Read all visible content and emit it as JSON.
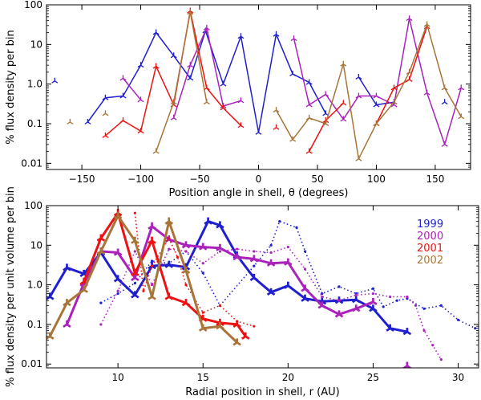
{
  "chart_data": [
    {
      "type": "line",
      "xlabel": "Position angle in shell, θ (degrees)",
      "ylabel": "% flux density per bin",
      "xlim": [
        -180,
        180
      ],
      "ylim": [
        0.007,
        100
      ],
      "yscale": "log",
      "xticks": [
        -150,
        -100,
        -50,
        0,
        50,
        100,
        150
      ],
      "xtick_labels": [
        "−150",
        "−100",
        "−50",
        "0",
        "50",
        "100",
        "150"
      ],
      "yticks": [
        0.01,
        0.1,
        1,
        10,
        100
      ],
      "ytick_labels": [
        "0.01",
        "0.1",
        "1.0",
        "10",
        "100"
      ],
      "series": [
        {
          "color": "#1f1fd0",
          "points": [
            [
              -173,
              1.2
            ],
            null,
            [
              -145,
              0.11
            ],
            [
              -130,
              0.45
            ],
            [
              -115,
              0.5
            ],
            [
              -100,
              3.0
            ],
            [
              -87,
              20
            ],
            [
              -72,
              5.2
            ],
            [
              -58,
              1.4
            ],
            [
              -45,
              22
            ],
            [
              -30,
              1.0
            ],
            [
              -15,
              16
            ],
            [
              0,
              0.06
            ],
            [
              15,
              18
            ],
            [
              29,
              1.8
            ],
            [
              43,
              1.1
            ],
            [
              57,
              0.18
            ],
            null,
            [
              85,
              1.5
            ],
            [
              100,
              0.3
            ],
            [
              115,
              0.35
            ],
            null,
            [
              158,
              0.35
            ]
          ]
        },
        {
          "color": "#aa22bb",
          "points": [
            [
              -115,
              1.4
            ],
            [
              -100,
              0.4
            ],
            null,
            [
              -72,
              0.14
            ],
            [
              -58,
              3.0
            ],
            [
              -44,
              26
            ],
            [
              -30,
              0.28
            ],
            [
              -15,
              0.38
            ],
            null,
            [
              30,
              14
            ],
            [
              43,
              0.3
            ],
            [
              57,
              0.55
            ],
            [
              72,
              0.13
            ],
            [
              85,
              0.5
            ],
            [
              100,
              0.5
            ],
            [
              115,
              0.3
            ],
            [
              128,
              45
            ],
            [
              143,
              0.6
            ],
            [
              158,
              0.03
            ],
            [
              172,
              0.8
            ]
          ]
        },
        {
          "color": "#ee1111",
          "points": [
            [
              -130,
              0.05
            ],
            [
              -115,
              0.12
            ],
            [
              -100,
              0.065
            ],
            [
              -87,
              2.8
            ],
            [
              -72,
              0.3
            ],
            [
              -58,
              70
            ],
            [
              -44,
              0.8
            ],
            [
              -30,
              0.25
            ],
            [
              -15,
              0.09
            ],
            null,
            [
              15,
              0.08
            ],
            null,
            [
              43,
              0.02
            ],
            [
              57,
              0.12
            ],
            [
              72,
              0.33
            ],
            null,
            [
              100,
              0.1
            ],
            [
              115,
              0.8
            ],
            [
              128,
              1.3
            ],
            [
              143,
              28
            ]
          ]
        },
        {
          "color": "#a87438",
          "points": [
            [
              -160,
              0.11
            ],
            null,
            [
              -130,
              0.18
            ],
            null,
            [
              -87,
              0.02
            ],
            [
              -72,
              0.35
            ],
            [
              -58,
              65
            ],
            [
              -44,
              0.35
            ],
            null,
            [
              15,
              0.22
            ],
            [
              29,
              0.04
            ],
            [
              43,
              0.14
            ],
            [
              57,
              0.1
            ],
            [
              72,
              3.2
            ],
            [
              85,
              0.013
            ],
            [
              100,
              0.1
            ],
            [
              115,
              0.35
            ],
            [
              128,
              2.0
            ],
            [
              143,
              32
            ],
            [
              158,
              0.8
            ],
            [
              172,
              0.15
            ]
          ]
        }
      ]
    },
    {
      "type": "line",
      "xlabel": "Radial position in shell, r (AU)",
      "ylabel": "% flux density per unit volume per bin",
      "xlim": [
        5.8,
        31.2
      ],
      "ylim": [
        0.008,
        100
      ],
      "yscale": "log",
      "xticks": [
        10,
        15,
        20,
        25,
        30
      ],
      "xtick_labels": [
        "10",
        "15",
        "20",
        "25",
        "30"
      ],
      "yticks": [
        0.01,
        0.1,
        1,
        10,
        100
      ],
      "ytick_labels": [
        "0.01",
        "0.1",
        "1.0",
        "10",
        "100"
      ],
      "legend": {
        "position": "top-right",
        "entries": [
          {
            "label": "1999",
            "color": "#1f1fd0"
          },
          {
            "label": "2000",
            "color": "#aa22bb"
          },
          {
            "label": "2001",
            "color": "#ee1111"
          },
          {
            "label": "2002",
            "color": "#a87438"
          }
        ]
      },
      "series": [
        {
          "name": "1999",
          "color": "#1f1fd0",
          "style": "solid",
          "points": [
            [
              6.0,
              0.5
            ],
            [
              7.0,
              2.7
            ],
            [
              8.0,
              1.9
            ],
            [
              9.0,
              6.5
            ],
            [
              10.0,
              1.4
            ],
            [
              11.0,
              0.55
            ],
            [
              12.0,
              3.0
            ],
            [
              13.0,
              3.2
            ],
            [
              14.0,
              2.8
            ],
            [
              15.3,
              40
            ],
            [
              16.0,
              32
            ],
            [
              17.0,
              5.5
            ],
            [
              18.0,
              1.5
            ],
            [
              19.0,
              0.65
            ],
            [
              20.0,
              0.95
            ],
            [
              21.0,
              0.45
            ],
            [
              22.0,
              0.38
            ],
            [
              23.0,
              0.4
            ],
            [
              24.0,
              0.42
            ],
            [
              25.0,
              0.25
            ],
            [
              26.0,
              0.08
            ],
            [
              27.0,
              0.065
            ]
          ]
        },
        {
          "name": "1999",
          "color": "#1f1fd0",
          "style": "dotted",
          "points": [
            [
              9.0,
              0.35
            ],
            [
              10.0,
              0.6
            ],
            [
              11.0,
              1.1
            ],
            [
              12.0,
              4.0
            ],
            [
              13.0,
              3.5
            ],
            [
              14.0,
              7.0
            ],
            [
              15.0,
              2.0
            ],
            [
              16.0,
              0.3
            ],
            [
              18.0,
              3.0
            ],
            [
              19.0,
              10
            ],
            [
              19.5,
              40
            ],
            [
              20.5,
              28
            ],
            [
              21.0,
              7.0
            ],
            [
              22.0,
              0.6
            ],
            [
              23.0,
              0.9
            ],
            [
              24.0,
              0.6
            ],
            [
              25.0,
              0.8
            ],
            [
              25.6,
              0.28
            ],
            [
              26.4,
              0.4
            ],
            [
              27.0,
              0.45
            ],
            [
              28.0,
              0.25
            ],
            [
              29.0,
              0.3
            ],
            [
              30.0,
              0.13
            ],
            [
              31.0,
              0.08
            ]
          ]
        },
        {
          "name": "2000",
          "color": "#aa22bb",
          "style": "solid",
          "points": [
            [
              7.0,
              0.1
            ],
            [
              8.0,
              1.1
            ],
            [
              9.0,
              7.0
            ],
            [
              10.0,
              6.5
            ],
            [
              11.0,
              1.5
            ],
            [
              12.0,
              30
            ],
            [
              13.0,
              14
            ],
            [
              14.0,
              10
            ],
            [
              15.0,
              9.0
            ],
            [
              16.0,
              8.5
            ],
            [
              17.0,
              5.0
            ],
            [
              18.0,
              4.5
            ],
            [
              19.0,
              3.5
            ],
            [
              20.0,
              3.7
            ],
            [
              21.0,
              0.8
            ],
            [
              22.0,
              0.3
            ],
            [
              23.0,
              0.18
            ],
            [
              24.0,
              0.25
            ],
            [
              25.0,
              0.37
            ],
            null,
            [
              27.0,
              0.009
            ]
          ]
        },
        {
          "name": "2000",
          "color": "#aa22bb",
          "style": "dotted",
          "points": [
            [
              9.0,
              0.1
            ],
            [
              10.0,
              0.7
            ],
            [
              11.0,
              7.0
            ],
            [
              12.0,
              1.0
            ],
            [
              13.0,
              8.0
            ],
            [
              14.0,
              7.0
            ],
            [
              15.0,
              3.5
            ],
            [
              16.0,
              7.0
            ],
            [
              17.0,
              8.0
            ],
            [
              18.0,
              7.0
            ],
            [
              19.0,
              6.5
            ],
            [
              20.0,
              9.0
            ],
            [
              21.0,
              2.5
            ],
            [
              22.0,
              0.5
            ],
            [
              23.0,
              0.4
            ],
            [
              24.0,
              0.55
            ],
            [
              25.0,
              0.6
            ],
            [
              26.0,
              0.5
            ],
            [
              27.0,
              0.5
            ],
            [
              27.5,
              0.3
            ],
            [
              28.0,
              0.07
            ],
            [
              28.5,
              0.03
            ],
            [
              29.0,
              0.013
            ]
          ]
        },
        {
          "name": "2001",
          "color": "#ee1111",
          "style": "solid",
          "points": [
            [
              8.0,
              1.2
            ],
            [
              9.0,
              15
            ],
            [
              10.0,
              65
            ],
            [
              11.0,
              2.0
            ],
            [
              12.0,
              13
            ],
            [
              13.0,
              0.5
            ],
            [
              14.0,
              0.35
            ],
            [
              15.0,
              0.14
            ],
            [
              16.0,
              0.11
            ],
            [
              17.0,
              0.1
            ],
            [
              17.5,
              0.05
            ]
          ]
        },
        {
          "name": "2001",
          "color": "#ee1111",
          "style": "dotted",
          "points": [
            [
              11.0,
              65
            ],
            [
              11.5,
              0.7
            ],
            [
              12.0,
              3.0
            ],
            [
              13.0,
              15
            ],
            [
              13.5,
              5.0
            ],
            [
              14.0,
              1.0
            ],
            [
              15.0,
              0.2
            ],
            [
              16.0,
              0.3
            ],
            [
              17.0,
              0.12
            ],
            [
              18.0,
              0.09
            ]
          ]
        },
        {
          "name": "2002",
          "color": "#a87438",
          "style": "solid",
          "points": [
            [
              6.0,
              0.05
            ],
            [
              7.0,
              0.35
            ],
            [
              8.0,
              0.75
            ],
            [
              9.0,
              7.0
            ],
            [
              10.0,
              55
            ],
            [
              11.0,
              13
            ],
            [
              12.0,
              0.5
            ],
            [
              13.0,
              40
            ],
            [
              14.0,
              2.3
            ],
            [
              15.0,
              0.08
            ],
            [
              16.0,
              0.09
            ],
            [
              17.0,
              0.035
            ]
          ]
        }
      ]
    }
  ]
}
